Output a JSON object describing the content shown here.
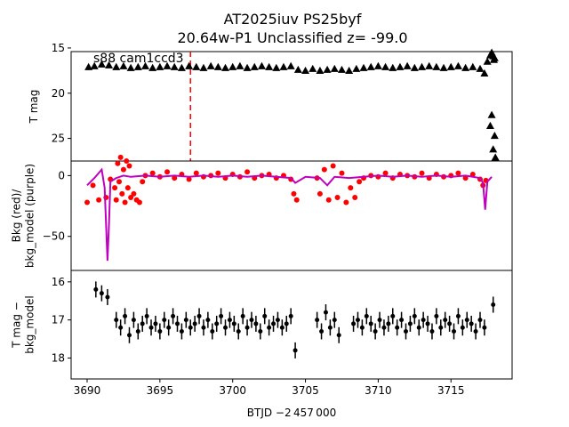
{
  "figure": {
    "title_line1": "AT2025iuv  PS25byf",
    "title_line2": "20.64w-P1 Unclassified z= -99.0",
    "annotation": "s88 cam1ccd3",
    "xlabel": "BTJD −2 457 000"
  },
  "colors": {
    "flux_points": "#000000",
    "bkg_points": "#ff0000",
    "bkg_model": "#bf00bf",
    "marker_line": "#ff0000"
  },
  "chart_data": [
    {
      "type": "scatter",
      "panel": "top",
      "ylabel": "T mag",
      "xlim": [
        3688.9,
        3719.2
      ],
      "ylim": [
        15.4,
        27.5
      ],
      "y_inverted": true,
      "yticks": [
        15,
        20,
        25
      ],
      "vline_x": 3697.1,
      "series": [
        {
          "marker": "triangle",
          "color": "#000000",
          "x": [
            3690.1,
            3690.5,
            3691.0,
            3691.5,
            3692.0,
            3692.5,
            3693.0,
            3693.5,
            3694.0,
            3694.5,
            3695.0,
            3695.5,
            3696.0,
            3696.5,
            3697.0,
            3697.5,
            3698.0,
            3698.5,
            3699.0,
            3699.5,
            3700.0,
            3700.5,
            3701.0,
            3701.5,
            3702.0,
            3702.5,
            3703.0,
            3703.5,
            3704.0,
            3704.5,
            3705.0,
            3705.5,
            3706.0,
            3706.5,
            3707.0,
            3707.5,
            3708.0,
            3708.5,
            3709.0,
            3709.5,
            3710.0,
            3710.5,
            3711.0,
            3711.5,
            3712.0,
            3712.5,
            3713.0,
            3713.5,
            3714.0,
            3714.5,
            3715.0,
            3715.5,
            3716.0,
            3716.5,
            3717.0,
            3717.3,
            3717.5,
            3717.7,
            3717.8,
            3717.9,
            3717.95,
            3718.0
          ],
          "y": [
            17.1,
            17.0,
            16.8,
            16.9,
            17.1,
            17.0,
            17.2,
            17.1,
            17.0,
            17.2,
            17.1,
            17.0,
            17.1,
            17.2,
            17.0,
            17.1,
            17.2,
            17.0,
            17.1,
            17.2,
            17.1,
            17.0,
            17.2,
            17.1,
            17.0,
            17.1,
            17.2,
            17.1,
            17.0,
            17.4,
            17.5,
            17.3,
            17.5,
            17.4,
            17.3,
            17.4,
            17.5,
            17.3,
            17.2,
            17.1,
            17.0,
            17.1,
            17.2,
            17.1,
            17.0,
            17.2,
            17.1,
            17.0,
            17.1,
            17.2,
            17.1,
            17.0,
            17.2,
            17.1,
            17.3,
            17.8,
            16.5,
            15.8,
            15.5,
            15.9,
            16.3,
            16.1
          ]
        },
        {
          "marker": "triangle",
          "color": "#000000",
          "x": [
            3717.7,
            3717.8,
            3717.9,
            3718.0,
            3718.05
          ],
          "y": [
            23.6,
            22.4,
            26.2,
            24.7,
            27.1
          ]
        }
      ]
    },
    {
      "type": "scatter",
      "panel": "middle",
      "ylabel": "Bkg (red)/\nbkg_model (purple)",
      "xlim": [
        3688.9,
        3719.2
      ],
      "ylim": [
        -78,
        12
      ],
      "yticks": [
        0,
        -50
      ],
      "series": [
        {
          "name": "bkg",
          "marker": "dot",
          "color": "#ff0000",
          "x": [
            3690.0,
            3690.4,
            3690.8,
            3691.3,
            3691.6,
            3691.9,
            3692.0,
            3692.1,
            3692.2,
            3692.3,
            3692.4,
            3692.5,
            3692.6,
            3692.7,
            3692.8,
            3692.9,
            3693.0,
            3693.2,
            3693.4,
            3693.6,
            3693.8,
            3694.0,
            3694.5,
            3695.0,
            3695.5,
            3696.0,
            3696.5,
            3697.0,
            3697.5,
            3698.0,
            3698.5,
            3699.0,
            3699.5,
            3700.0,
            3700.5,
            3701.0,
            3701.5,
            3702.0,
            3702.5,
            3703.0,
            3703.5,
            3704.0,
            3704.2,
            3704.4,
            3705.8,
            3706.0,
            3706.3,
            3706.6,
            3706.9,
            3707.2,
            3707.5,
            3707.8,
            3708.1,
            3708.4,
            3708.7,
            3709.0,
            3709.5,
            3710.0,
            3710.5,
            3711.0,
            3711.5,
            3712.0,
            3712.5,
            3713.0,
            3713.5,
            3714.0,
            3714.5,
            3715.0,
            3715.5,
            3716.0,
            3716.5,
            3717.0,
            3717.2,
            3717.4
          ],
          "y": [
            -22,
            -8,
            -20,
            -18,
            -3,
            -10,
            -20,
            10,
            -5,
            15,
            -15,
            5,
            -22,
            12,
            -10,
            8,
            -18,
            -15,
            -20,
            -22,
            -5,
            0,
            2,
            -1,
            3,
            -2,
            1,
            -3,
            2,
            -1,
            0,
            2,
            -2,
            1,
            -1,
            3,
            -2,
            0,
            1,
            -2,
            0,
            -3,
            -15,
            -20,
            -2,
            -15,
            5,
            -20,
            8,
            -18,
            2,
            -22,
            -10,
            -18,
            -5,
            -2,
            0,
            -1,
            2,
            -2,
            1,
            0,
            -1,
            2,
            -2,
            1,
            -1,
            0,
            2,
            -2,
            1,
            -3,
            -8,
            -4
          ]
        },
        {
          "name": "bkg_model",
          "marker": "line",
          "color": "#bf00bf",
          "x": [
            3690.0,
            3690.5,
            3691.0,
            3691.2,
            3691.4,
            3691.5,
            3691.6,
            3692.0,
            3692.5,
            3693.0,
            3694.0,
            3695.0,
            3696.0,
            3697.0,
            3698.0,
            3699.0,
            3700.0,
            3701.0,
            3702.0,
            3703.0,
            3704.0,
            3704.3,
            3705.0,
            3706.0,
            3706.5,
            3707.0,
            3708.0,
            3709.0,
            3710.0,
            3711.0,
            3712.0,
            3713.0,
            3714.0,
            3715.0,
            3716.0,
            3717.0,
            3717.2,
            3717.35,
            3717.5,
            3717.8
          ],
          "y": [
            -8,
            -2,
            5,
            -10,
            -70,
            -40,
            -5,
            -2,
            0,
            -1,
            0,
            -1,
            0,
            -1,
            0,
            -1,
            0,
            -1,
            0,
            -1,
            -2,
            -6,
            -1,
            -2,
            -8,
            -1,
            -2,
            -1,
            0,
            -1,
            0,
            -1,
            0,
            -1,
            0,
            -2,
            -6,
            -28,
            -5,
            -1
          ]
        }
      ]
    },
    {
      "type": "scatter",
      "panel": "bottom",
      "ylabel": "T mag −\nbkg_model",
      "xlim": [
        3688.9,
        3719.2
      ],
      "ylim": [
        15.7,
        18.55
      ],
      "y_inverted": true,
      "yticks": [
        16,
        17,
        18
      ],
      "xticks": [
        3690,
        3695,
        3700,
        3705,
        3710,
        3715
      ],
      "series": [
        {
          "marker": "dot_errorbar",
          "color": "#000000",
          "x": [
            3690.6,
            3691.0,
            3691.4,
            3692.0,
            3692.3,
            3692.6,
            3692.9,
            3693.2,
            3693.5,
            3693.8,
            3694.1,
            3694.4,
            3694.7,
            3695.0,
            3695.3,
            3695.6,
            3695.9,
            3696.2,
            3696.5,
            3696.8,
            3697.1,
            3697.4,
            3697.7,
            3698.0,
            3698.3,
            3698.6,
            3698.9,
            3699.2,
            3699.5,
            3699.8,
            3700.1,
            3700.4,
            3700.7,
            3701.0,
            3701.3,
            3701.6,
            3701.9,
            3702.2,
            3702.5,
            3702.8,
            3703.1,
            3703.4,
            3703.7,
            3704.0,
            3704.3,
            3705.8,
            3706.1,
            3706.4,
            3706.7,
            3707.0,
            3707.3,
            3708.3,
            3708.6,
            3708.9,
            3709.2,
            3709.5,
            3709.8,
            3710.1,
            3710.4,
            3710.7,
            3711.0,
            3711.3,
            3711.6,
            3711.9,
            3712.2,
            3712.5,
            3712.8,
            3713.1,
            3713.4,
            3713.7,
            3714.0,
            3714.3,
            3714.6,
            3714.9,
            3715.2,
            3715.5,
            3715.8,
            3716.1,
            3716.4,
            3716.7,
            3717.0,
            3717.3,
            3717.9
          ],
          "y": [
            16.2,
            16.3,
            16.4,
            17.0,
            17.2,
            16.9,
            17.4,
            17.0,
            17.3,
            17.1,
            16.9,
            17.2,
            17.1,
            17.3,
            17.0,
            17.2,
            16.9,
            17.1,
            17.3,
            17.0,
            17.2,
            17.1,
            16.9,
            17.2,
            17.0,
            17.3,
            17.1,
            16.9,
            17.2,
            17.0,
            17.1,
            17.3,
            16.9,
            17.2,
            17.0,
            17.1,
            17.3,
            16.9,
            17.2,
            17.1,
            17.0,
            17.2,
            17.1,
            16.9,
            17.8,
            17.0,
            17.3,
            16.8,
            17.2,
            17.0,
            17.4,
            17.1,
            17.0,
            17.2,
            16.9,
            17.1,
            17.3,
            17.0,
            17.2,
            17.1,
            16.9,
            17.2,
            17.0,
            17.3,
            17.1,
            16.9,
            17.2,
            17.0,
            17.1,
            17.3,
            16.9,
            17.2,
            17.0,
            17.1,
            17.3,
            16.9,
            17.2,
            17.0,
            17.1,
            17.3,
            17.0,
            17.2,
            16.6
          ]
        }
      ]
    }
  ]
}
